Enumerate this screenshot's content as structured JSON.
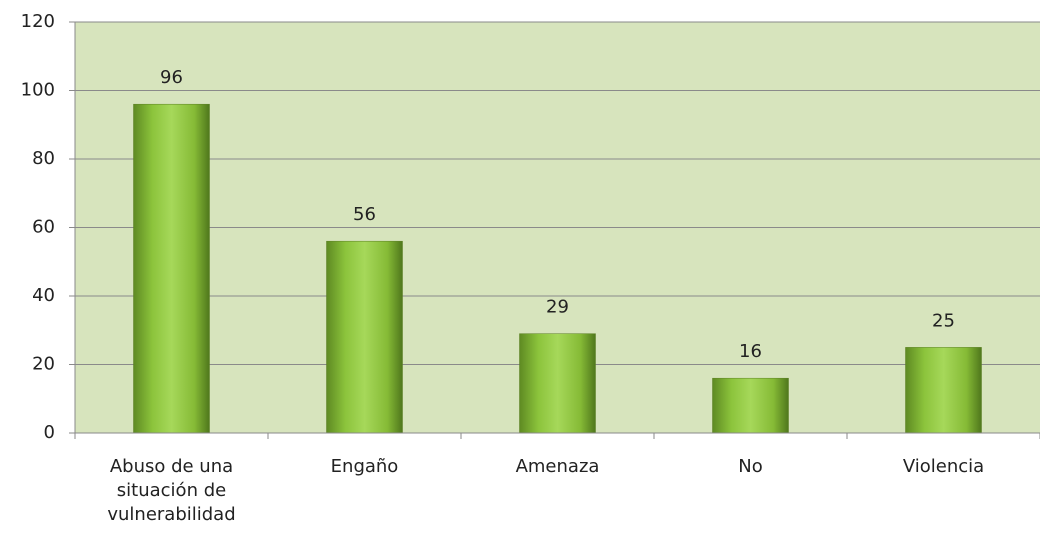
{
  "chart_data": {
    "type": "bar",
    "categories": [
      "Abuso de una situación de vulnerabilidad",
      "Engaño",
      "Amenaza",
      "No",
      "Violencia"
    ],
    "values": [
      96,
      56,
      29,
      16,
      25
    ],
    "color": "#8cc43c",
    "ylim": [
      0,
      120
    ],
    "yticks": [
      0,
      20,
      40,
      60,
      80,
      100,
      120
    ],
    "grid": true
  }
}
